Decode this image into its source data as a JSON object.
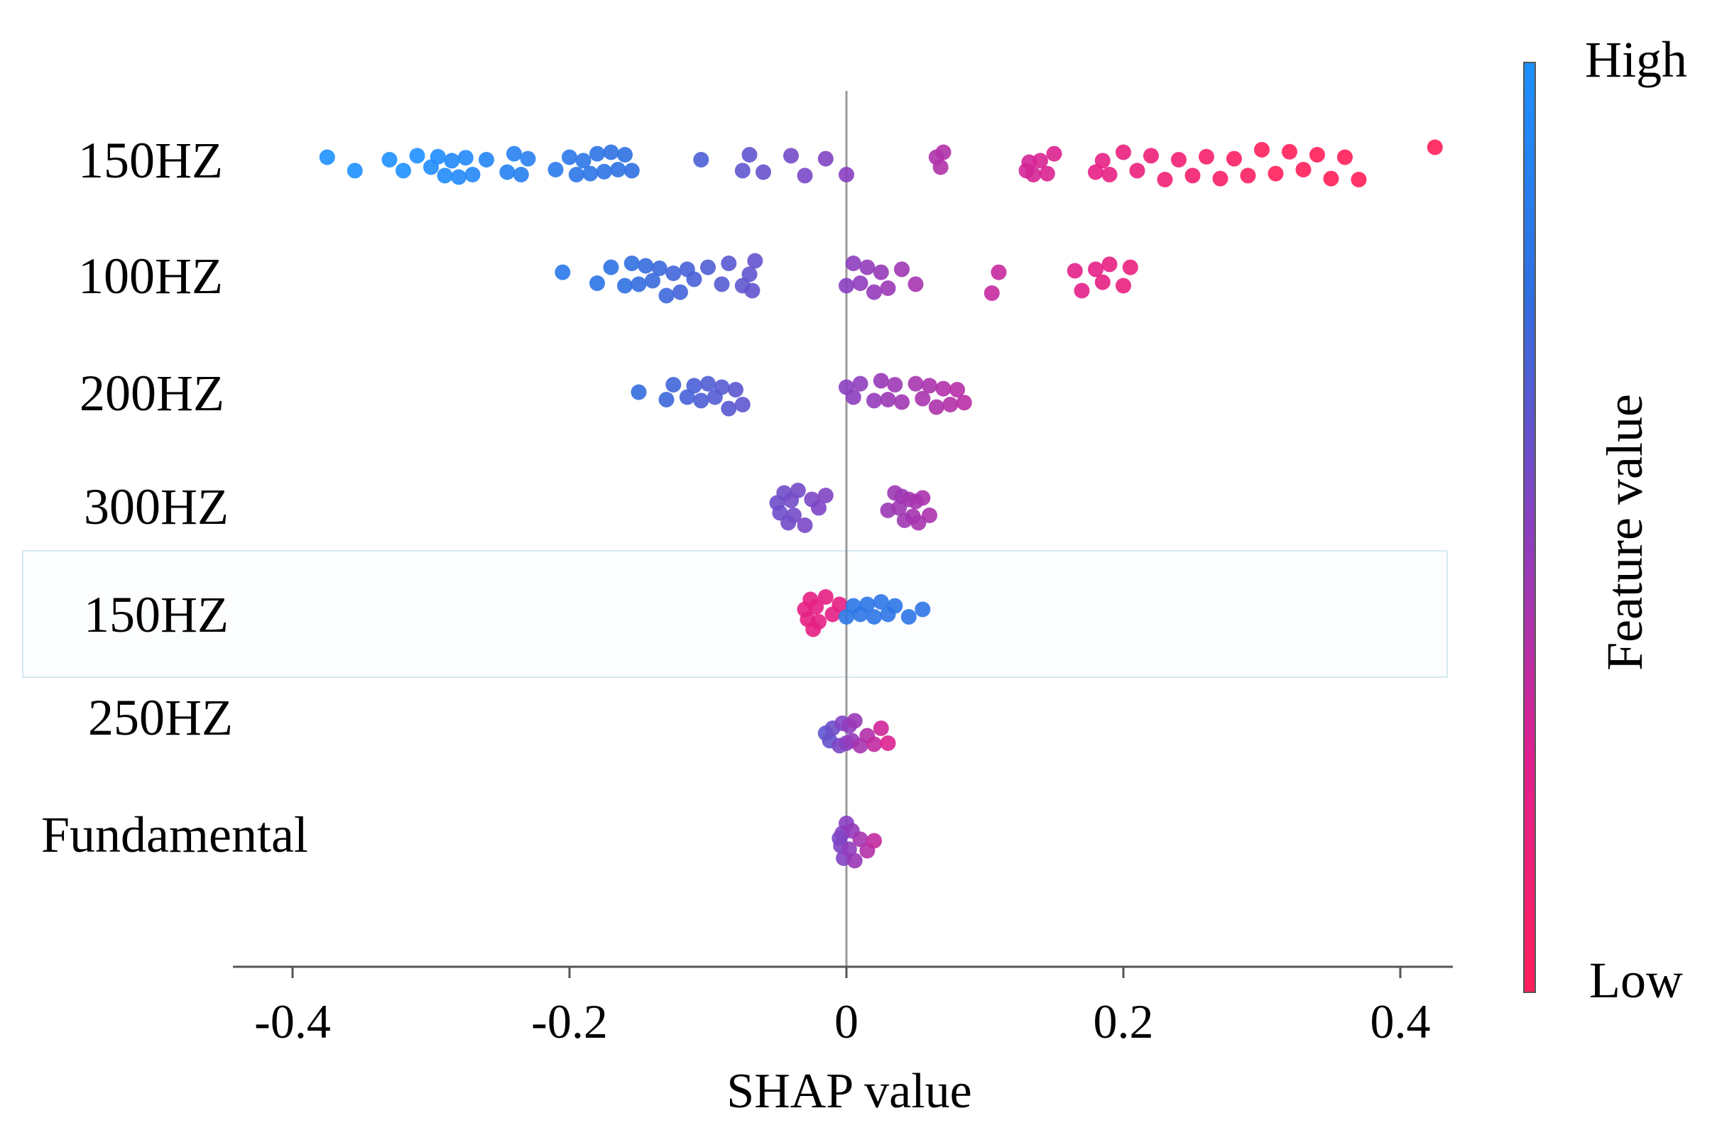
{
  "chart_data": {
    "type": "scatter",
    "subtype": "shap-beeswarm",
    "xlabel": "SHAP value",
    "xlim": [
      -0.44,
      0.44
    ],
    "xticks": [
      -0.4,
      -0.2,
      0,
      0.2,
      0.4
    ],
    "xtick_labels": [
      "-0.4",
      "-0.2",
      "0",
      "0.2",
      "0.4"
    ],
    "colorbar": {
      "label": "Feature value",
      "high_label": "High",
      "low_label": "Low",
      "high_color": "#1e90ff",
      "mid_color": "#8a3fc0",
      "low_color": "#ff1f5a"
    },
    "features": [
      {
        "name": "150HZ",
        "points": [
          [
            -0.375,
            0.15
          ],
          [
            -0.355,
            0.12
          ],
          [
            -0.33,
            0.1
          ],
          [
            -0.32,
            0.12
          ],
          [
            -0.31,
            0.18
          ],
          [
            -0.3,
            0.05
          ],
          [
            -0.295,
            0.16
          ],
          [
            -0.29,
            0.22
          ],
          [
            -0.285,
            0.08
          ],
          [
            -0.28,
            0.25
          ],
          [
            -0.275,
            0.14
          ],
          [
            -0.27,
            0.2
          ],
          [
            -0.26,
            0.1
          ],
          [
            -0.245,
            0.15
          ],
          [
            -0.24,
            0.22
          ],
          [
            -0.235,
            0.2
          ],
          [
            -0.23,
            0.12
          ],
          [
            -0.21,
            0.1
          ],
          [
            -0.2,
            0.15
          ],
          [
            -0.195,
            0.2
          ],
          [
            -0.19,
            0.08
          ],
          [
            -0.185,
            0.18
          ],
          [
            -0.18,
            0.22
          ],
          [
            -0.175,
            0.14
          ],
          [
            -0.17,
            0.25
          ],
          [
            -0.165,
            0.1
          ],
          [
            -0.16,
            0.2
          ],
          [
            -0.155,
            0.12
          ],
          [
            -0.105,
            0.1
          ],
          [
            -0.075,
            0.12
          ],
          [
            -0.07,
            0.2
          ],
          [
            -0.06,
            0.15
          ],
          [
            -0.04,
            0.18
          ],
          [
            -0.03,
            0.22
          ],
          [
            -0.015,
            0.12
          ],
          [
            0.0,
            0.2
          ],
          [
            0.065,
            0.15
          ],
          [
            0.068,
            0.05
          ],
          [
            0.07,
            0.25
          ],
          [
            0.13,
            0.12
          ],
          [
            0.132,
            0.05
          ],
          [
            0.135,
            0.2
          ],
          [
            0.14,
            0.08
          ],
          [
            0.145,
            0.18
          ],
          [
            0.15,
            0.22
          ],
          [
            0.18,
            0.15
          ],
          [
            0.185,
            0.08
          ],
          [
            0.19,
            0.2
          ],
          [
            0.2,
            0.25
          ],
          [
            0.21,
            0.12
          ],
          [
            0.22,
            0.18
          ],
          [
            0.23,
            0.3
          ],
          [
            0.24,
            0.1
          ],
          [
            0.25,
            0.22
          ],
          [
            0.26,
            0.16
          ],
          [
            0.27,
            0.28
          ],
          [
            0.28,
            0.12
          ],
          [
            0.29,
            0.22
          ],
          [
            0.3,
            0.3
          ],
          [
            0.31,
            0.18
          ],
          [
            0.32,
            0.26
          ],
          [
            0.33,
            0.1
          ],
          [
            0.34,
            0.2
          ],
          [
            0.35,
            0.28
          ],
          [
            0.36,
            0.15
          ],
          [
            0.37,
            0.3
          ],
          [
            0.425,
            0.35
          ]
        ]
      },
      {
        "name": "100HZ",
        "points": [
          [
            -0.205,
            0.12
          ],
          [
            -0.18,
            0.1
          ],
          [
            -0.17,
            0.22
          ],
          [
            -0.16,
            0.15
          ],
          [
            -0.155,
            0.3
          ],
          [
            -0.15,
            0.12
          ],
          [
            -0.145,
            0.25
          ],
          [
            -0.14,
            0.05
          ],
          [
            -0.135,
            0.2
          ],
          [
            -0.13,
            0.35
          ],
          [
            -0.125,
            0.1
          ],
          [
            -0.12,
            0.28
          ],
          [
            -0.115,
            0.18
          ],
          [
            -0.11,
            0.02
          ],
          [
            -0.1,
            0.22
          ],
          [
            -0.09,
            0.12
          ],
          [
            -0.085,
            0.3
          ],
          [
            -0.075,
            0.15
          ],
          [
            -0.07,
            0.08
          ],
          [
            -0.068,
            0.25
          ],
          [
            -0.066,
            0.35
          ],
          [
            0.0,
            0.15
          ],
          [
            0.005,
            0.3
          ],
          [
            0.01,
            0.1
          ],
          [
            0.015,
            0.22
          ],
          [
            0.02,
            0.28
          ],
          [
            0.025,
            0.12
          ],
          [
            0.03,
            0.2
          ],
          [
            0.04,
            0.18
          ],
          [
            0.05,
            0.12
          ],
          [
            0.11,
            0.12
          ],
          [
            0.105,
            0.3
          ],
          [
            0.165,
            0.15
          ],
          [
            0.17,
            0.25
          ],
          [
            0.18,
            0.18
          ],
          [
            0.185,
            0.08
          ],
          [
            0.19,
            0.28
          ],
          [
            0.2,
            0.15
          ],
          [
            0.205,
            0.22
          ]
        ]
      },
      {
        "name": "200HZ",
        "points": [
          [
            -0.15,
            0.05
          ],
          [
            -0.13,
            0.1
          ],
          [
            -0.125,
            0.2
          ],
          [
            -0.115,
            0.05
          ],
          [
            -0.11,
            0.18
          ],
          [
            -0.105,
            0.12
          ],
          [
            -0.1,
            0.22
          ],
          [
            -0.095,
            0.05
          ],
          [
            -0.09,
            0.15
          ],
          [
            -0.085,
            0.28
          ],
          [
            -0.08,
            0.1
          ],
          [
            -0.075,
            0.2
          ],
          [
            0.0,
            0.15
          ],
          [
            0.005,
            0.05
          ],
          [
            0.01,
            0.22
          ],
          [
            0.02,
            0.12
          ],
          [
            0.025,
            0.28
          ],
          [
            0.03,
            0.1
          ],
          [
            0.035,
            0.2
          ],
          [
            0.04,
            0.15
          ],
          [
            0.05,
            0.22
          ],
          [
            0.055,
            0.08
          ],
          [
            0.06,
            0.18
          ],
          [
            0.065,
            0.25
          ],
          [
            0.07,
            0.12
          ],
          [
            0.075,
            0.2
          ],
          [
            0.08,
            0.1
          ],
          [
            0.085,
            0.16
          ]
        ]
      },
      {
        "name": "300HZ",
        "points": [
          [
            -0.05,
            0.05
          ],
          [
            -0.048,
            0.15
          ],
          [
            -0.045,
            0.25
          ],
          [
            -0.042,
            0.35
          ],
          [
            -0.04,
            0.1
          ],
          [
            -0.038,
            0.2
          ],
          [
            -0.035,
            0.3
          ],
          [
            -0.03,
            0.4
          ],
          [
            -0.025,
            0.12
          ],
          [
            -0.02,
            0.05
          ],
          [
            -0.015,
            0.2
          ],
          [
            0.03,
            0.1
          ],
          [
            0.035,
            0.25
          ],
          [
            0.038,
            0.05
          ],
          [
            0.04,
            0.18
          ],
          [
            0.042,
            0.3
          ],
          [
            0.045,
            0.12
          ],
          [
            0.048,
            0.22
          ],
          [
            0.05,
            0.08
          ],
          [
            0.052,
            0.35
          ],
          [
            0.055,
            0.15
          ],
          [
            0.06,
            0.2
          ]
        ]
      },
      {
        "name": "150HZ",
        "points": [
          [
            -0.03,
            0.05
          ],
          [
            -0.028,
            0.15
          ],
          [
            -0.026,
            0.25
          ],
          [
            -0.024,
            0.35
          ],
          [
            -0.022,
            0.1
          ],
          [
            -0.02,
            0.2
          ],
          [
            -0.015,
            0.3
          ],
          [
            -0.01,
            0.05
          ],
          [
            -0.005,
            0.15
          ],
          [
            0.0,
            0.1
          ],
          [
            0.005,
            0.12
          ],
          [
            0.01,
            0.05
          ],
          [
            0.015,
            0.15
          ],
          [
            0.02,
            0.1
          ],
          [
            0.025,
            0.2
          ],
          [
            0.03,
            0.05
          ],
          [
            0.035,
            0.12
          ],
          [
            0.045,
            0.1
          ],
          [
            0.055,
            0.05
          ]
        ]
      },
      {
        "name": "250HZ",
        "points": [
          [
            -0.015,
            0.1
          ],
          [
            -0.012,
            0.05
          ],
          [
            -0.01,
            0.2
          ],
          [
            -0.005,
            0.15
          ],
          [
            -0.003,
            0.3
          ],
          [
            0.0,
            0.1
          ],
          [
            0.002,
            0.25
          ],
          [
            0.004,
            0.05
          ],
          [
            0.006,
            0.35
          ],
          [
            0.01,
            0.15
          ],
          [
            0.015,
            0.05
          ],
          [
            0.02,
            0.12
          ],
          [
            0.025,
            0.2
          ],
          [
            0.03,
            0.1
          ]
        ]
      },
      {
        "name": "Fundamental",
        "points": [
          [
            -0.005,
            0.1
          ],
          [
            -0.004,
            0.05
          ],
          [
            -0.003,
            0.2
          ],
          [
            -0.002,
            0.3
          ],
          [
            0.0,
            0.4
          ],
          [
            0.002,
            0.12
          ],
          [
            0.004,
            0.25
          ],
          [
            0.006,
            0.35
          ],
          [
            0.01,
            0.08
          ],
          [
            0.015,
            0.15
          ],
          [
            0.02,
            0.05
          ]
        ]
      }
    ]
  }
}
